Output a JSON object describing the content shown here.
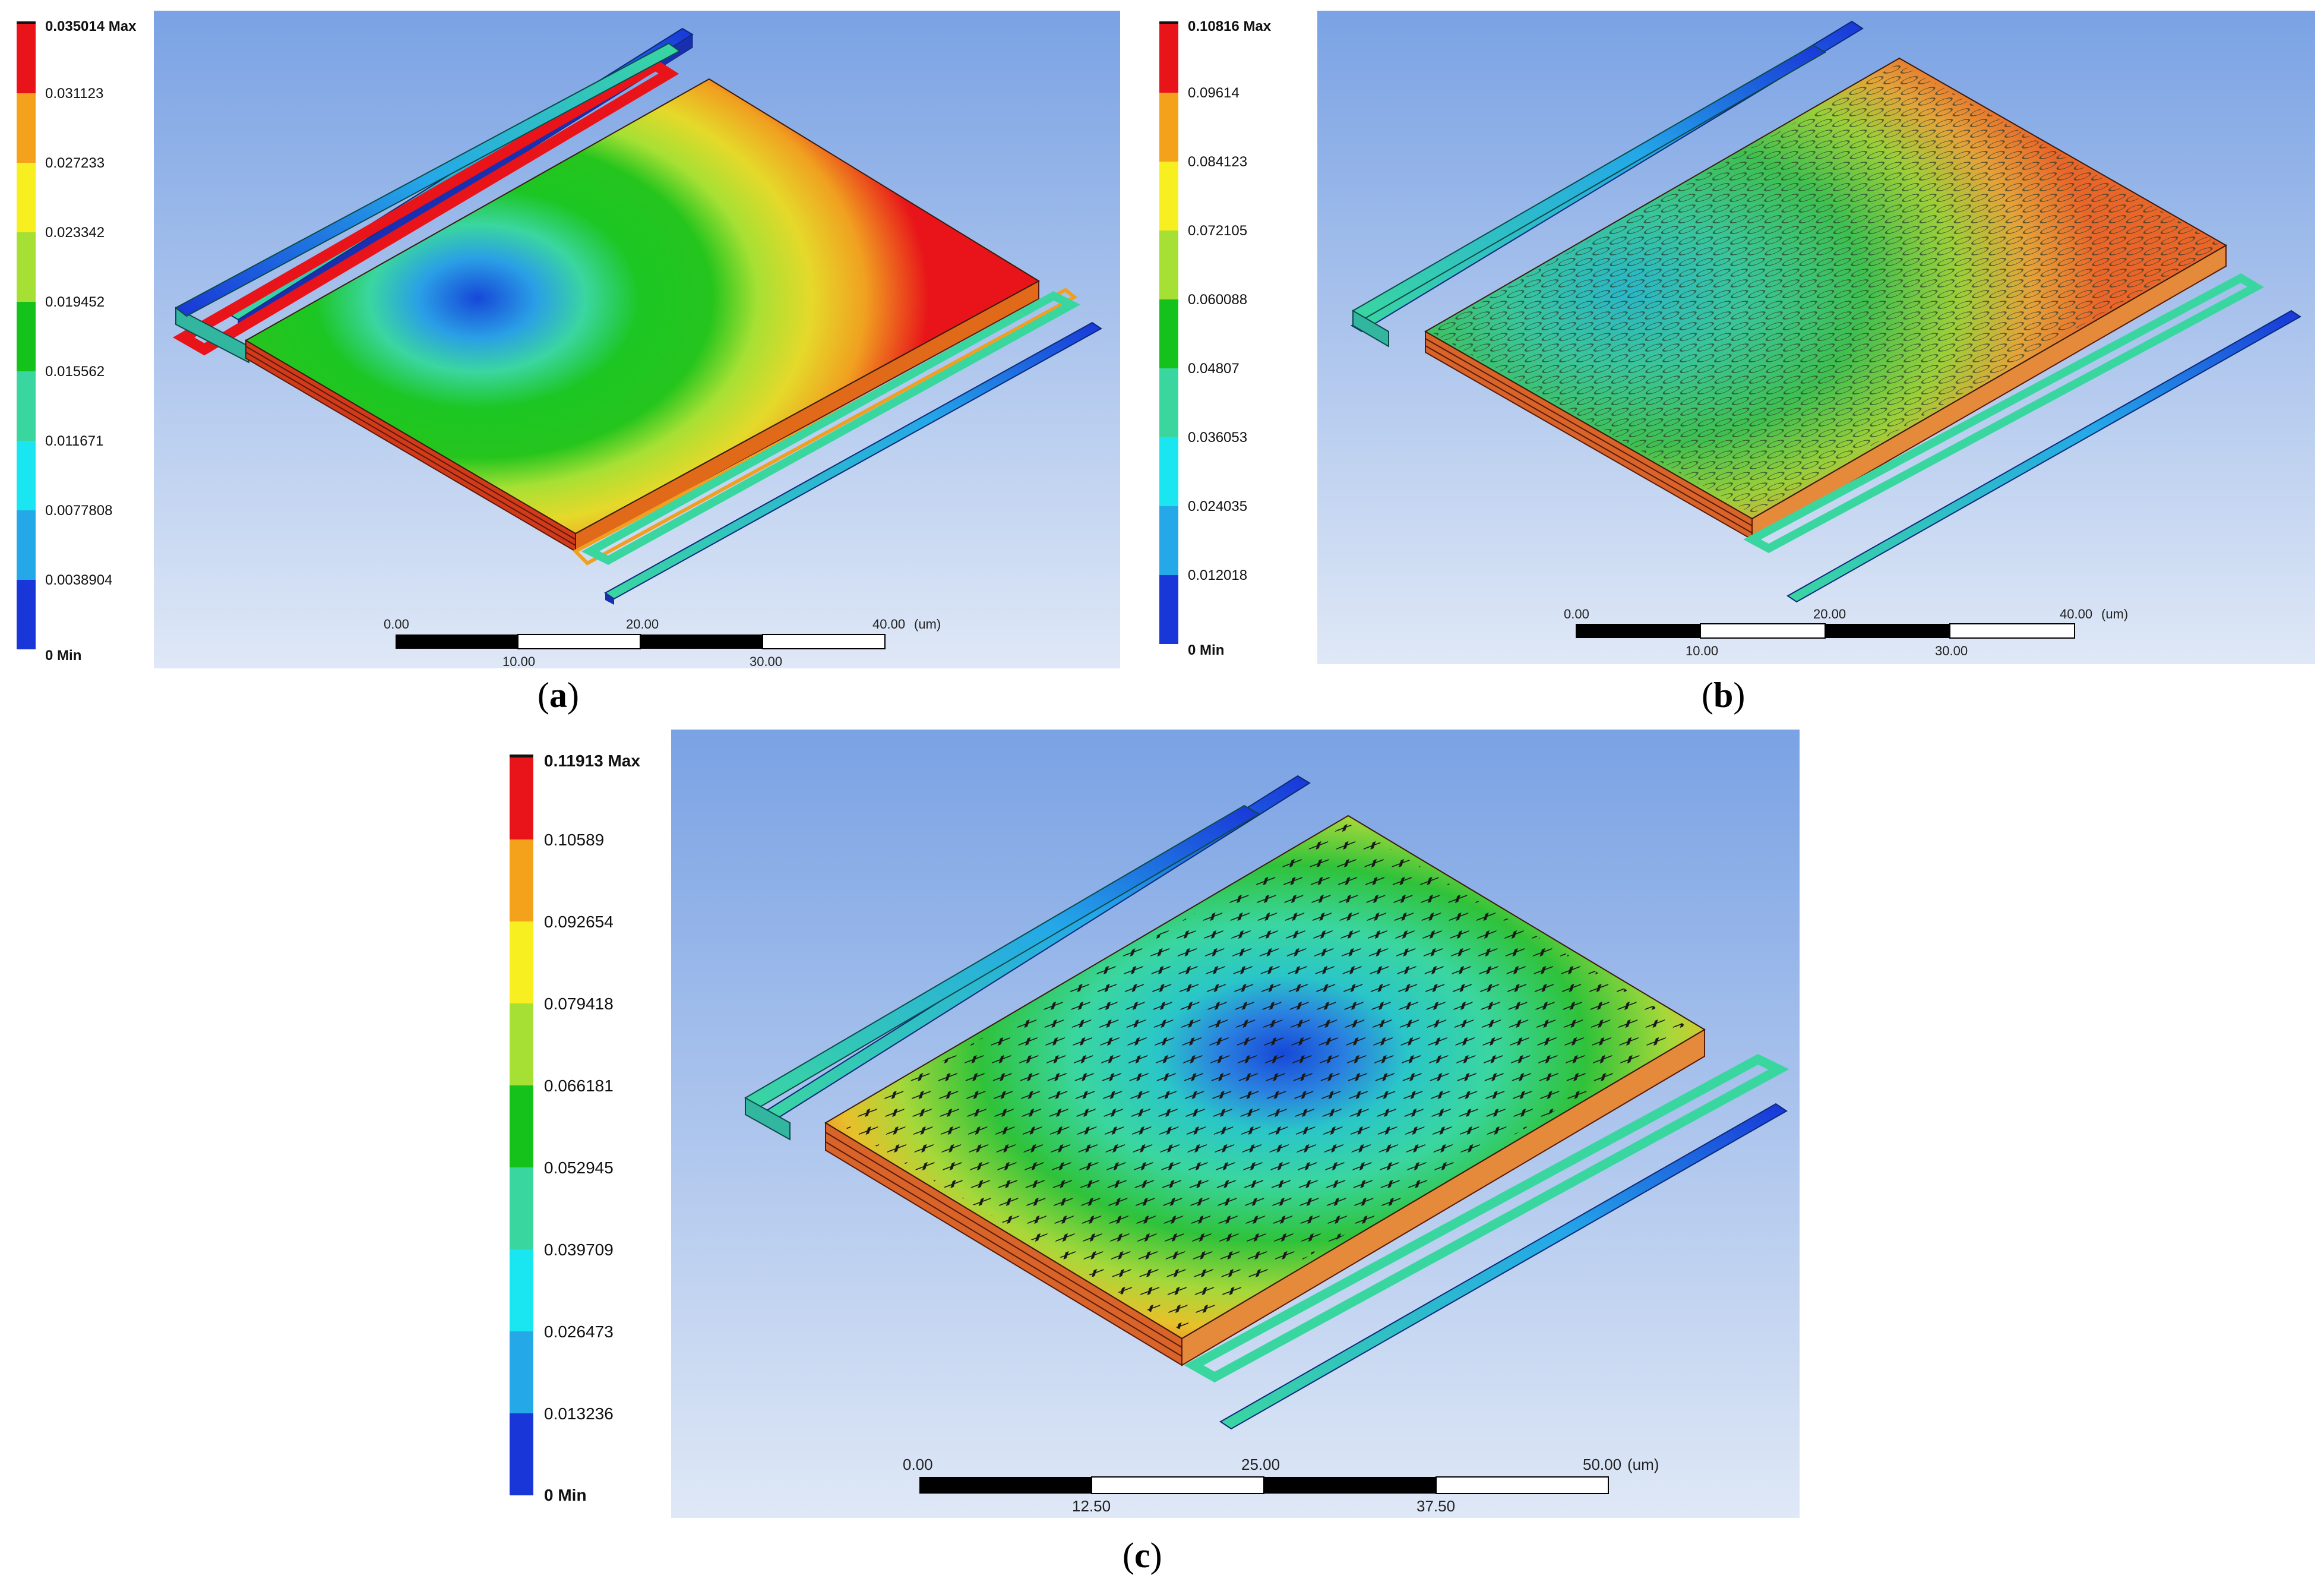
{
  "panels": [
    {
      "id": "a",
      "caption_open": "(",
      "caption_letter": "a",
      "caption_close": ")",
      "legend": {
        "max_value": "0.035014",
        "max_suffix": "Max",
        "min_value": "0",
        "min_suffix": "Min",
        "intermediate": [
          "0.031123",
          "0.027233",
          "0.023342",
          "0.019452",
          "0.015562",
          "0.011671",
          "0.0077808",
          "0.0038904"
        ]
      },
      "scale": {
        "top_ticks": [
          "0.00",
          "20.00",
          "40.00"
        ],
        "unit": "(um)",
        "bottom_ticks": [
          "10.00",
          "30.00"
        ]
      },
      "surface_pattern": "none"
    },
    {
      "id": "b",
      "caption_open": "(",
      "caption_letter": "b",
      "caption_close": ")",
      "legend": {
        "max_value": "0.10816",
        "max_suffix": "Max",
        "min_value": "0",
        "min_suffix": "Min",
        "intermediate": [
          "0.09614",
          "0.084123",
          "0.072105",
          "0.060088",
          "0.04807",
          "0.036053",
          "0.024035",
          "0.012018"
        ]
      },
      "scale": {
        "top_ticks": [
          "0.00",
          "20.00",
          "40.00"
        ],
        "unit": "(um)",
        "bottom_ticks": [
          "10.00",
          "30.00"
        ]
      },
      "surface_pattern": "circles"
    },
    {
      "id": "c",
      "caption_open": "(",
      "caption_letter": "c",
      "caption_close": ")",
      "legend": {
        "max_value": "0.11913",
        "max_suffix": "Max",
        "min_value": "0",
        "min_suffix": "Min",
        "intermediate": [
          "0.10589",
          "0.092654",
          "0.079418",
          "0.066181",
          "0.052945",
          "0.039709",
          "0.026473",
          "0.013236"
        ]
      },
      "scale": {
        "top_ticks": [
          "0.00",
          "25.00",
          "50.00"
        ],
        "unit": "(um)",
        "bottom_ticks": [
          "12.50",
          "37.50"
        ]
      },
      "surface_pattern": "crosses"
    }
  ],
  "colors": {
    "legend_bands_top_to_bottom": [
      "#e8141a",
      "#f4a21c",
      "#f7ef1f",
      "#a6e034",
      "#14c21b",
      "#3ad6a0",
      "#19e6f1",
      "#24a8e8",
      "#1936d8"
    ],
    "background_top": "#7aa2e4",
    "background_bottom": "#dfe8f6"
  }
}
